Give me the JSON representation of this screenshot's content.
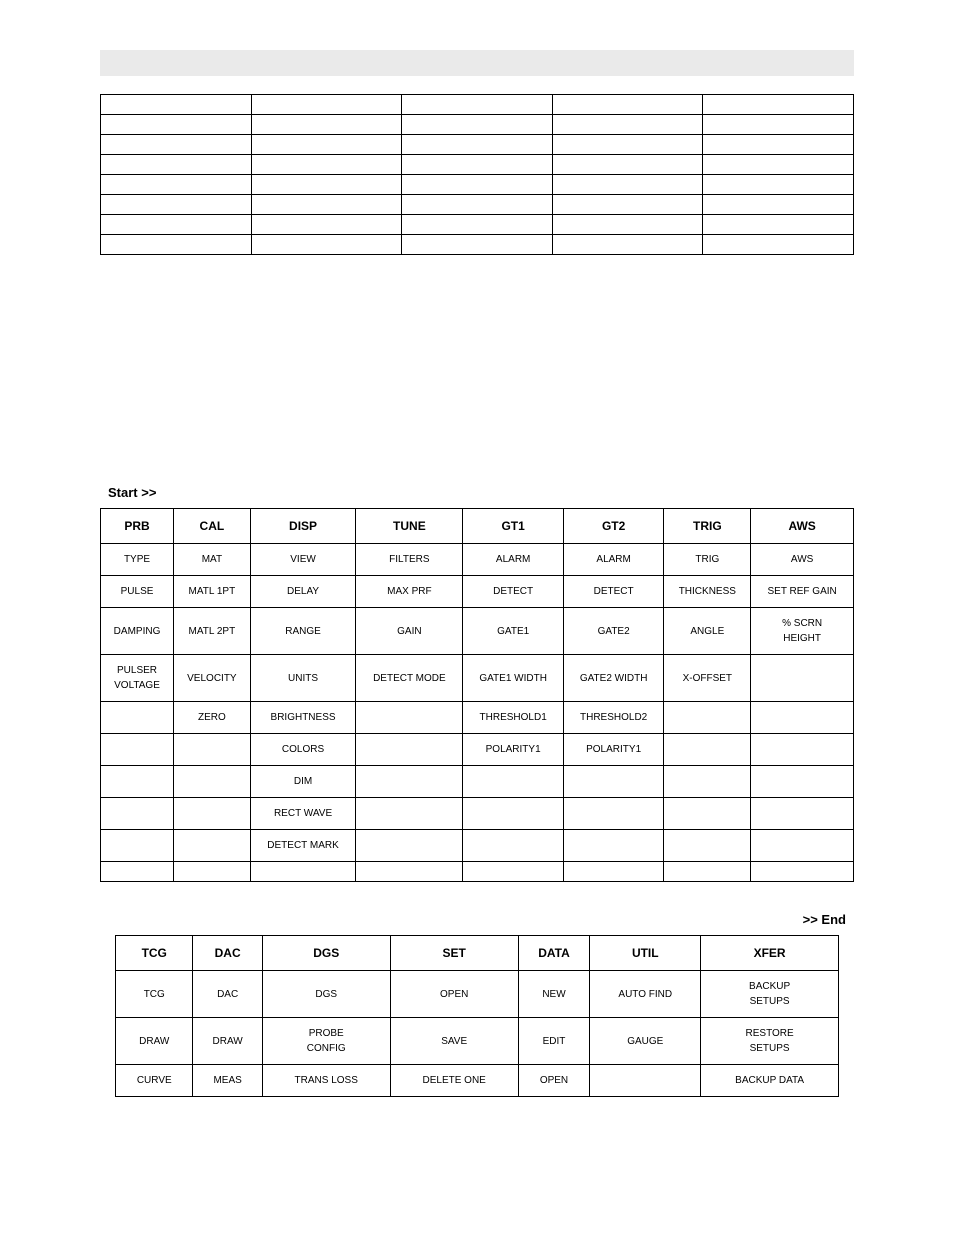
{
  "labels": {
    "start": "Start >>",
    "end": ">> End"
  },
  "table1": {
    "columns": 5,
    "rows": 8
  },
  "table2": {
    "headers": [
      "PRB",
      "CAL",
      "DISP",
      "TUNE",
      "GT1",
      "GT2",
      "TRIG",
      "AWS"
    ],
    "rows": [
      [
        "TYPE",
        "MAT",
        "VIEW",
        "FILTERS",
        "ALARM",
        "ALARM",
        "TRIG",
        "AWS"
      ],
      [
        "PULSE",
        "MATL 1PT",
        "DELAY",
        "MAX PRF",
        "DETECT",
        "DETECT",
        "THICKNESS",
        "SET REF GAIN"
      ],
      [
        "DAMPING",
        "MATL 2PT",
        "RANGE",
        "GAIN",
        "GATE1",
        "GATE2",
        "ANGLE",
        "% SCRN\nHEIGHT"
      ],
      [
        "PULSER\nVOLTAGE",
        "VELOCITY",
        "UNITS",
        "DETECT MODE",
        "GATE1 WIDTH",
        "GATE2 WIDTH",
        "X-OFFSET",
        ""
      ],
      [
        "",
        "ZERO",
        "BRIGHTNESS",
        "",
        "THRESHOLD1",
        "THRESHOLD2",
        "",
        ""
      ],
      [
        "",
        "",
        "COLORS",
        "",
        "POLARITY1",
        "POLARITY1",
        "",
        ""
      ],
      [
        "",
        "",
        "DIM",
        "",
        "",
        "",
        "",
        ""
      ],
      [
        "",
        "",
        "RECT WAVE",
        "",
        "",
        "",
        "",
        ""
      ],
      [
        "",
        "",
        "DETECT MARK",
        "",
        "",
        "",
        "",
        ""
      ],
      [
        "",
        "",
        "",
        "",
        "",
        "",
        "",
        ""
      ]
    ]
  },
  "table3": {
    "headers": [
      "TCG",
      "DAC",
      "DGS",
      "SET",
      "DATA",
      "UTIL",
      "XFER"
    ],
    "rows": [
      [
        "TCG",
        "DAC",
        "DGS",
        "OPEN",
        "NEW",
        "AUTO FIND",
        "BACKUP\nSETUPS"
      ],
      [
        "DRAW",
        "DRAW",
        "PROBE\nCONFIG",
        "SAVE",
        "EDIT",
        "GAUGE",
        "RESTORE\nSETUPS"
      ],
      [
        "CURVE",
        "MEAS",
        "TRANS LOSS",
        "DELETE ONE",
        "OPEN",
        "",
        "BACKUP DATA"
      ]
    ]
  }
}
